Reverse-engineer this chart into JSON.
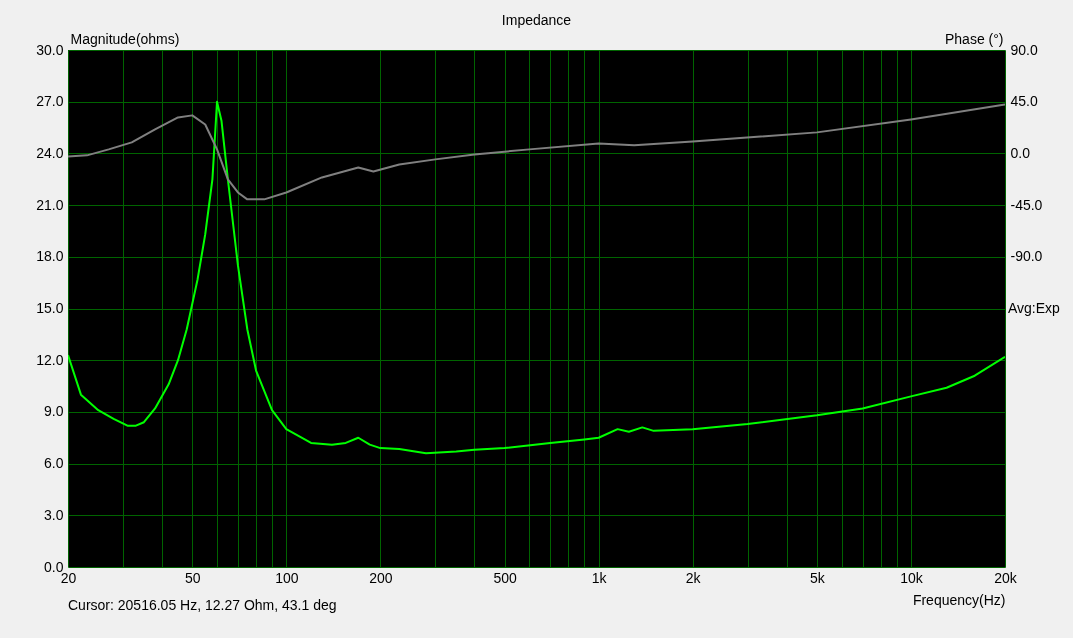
{
  "chart_data": {
    "type": "line",
    "title": "Impedance",
    "xlabel": "Frequency(Hz)",
    "ylabel": "Magnitude(ohms)",
    "y2label": "Phase (°)",
    "annotations": [
      "Cursor: 20516.05 Hz, 12.27 Ohm, 43.1 deg",
      "Avg:Exp"
    ],
    "log": "x",
    "grid": true,
    "line_style": "solid",
    "marker": "none",
    "xlim": [
      20,
      20000
    ],
    "xticks": [
      20,
      {
        "value": 30,
        "label": null
      },
      {
        "value": 40,
        "label": null
      },
      50,
      {
        "value": 60,
        "label": null
      },
      {
        "value": 70,
        "label": null
      },
      {
        "value": 80,
        "label": null
      },
      {
        "value": 90,
        "label": null
      },
      100,
      200,
      {
        "value": 300,
        "label": null
      },
      {
        "value": 400,
        "label": null
      },
      500,
      {
        "value": 600,
        "label": null
      },
      {
        "value": 700,
        "label": null
      },
      {
        "value": 800,
        "label": null
      },
      {
        "value": 900,
        "label": null
      },
      {
        "value": 1000,
        "label": "1k"
      },
      {
        "value": 2000,
        "label": "2k"
      },
      {
        "value": 3000,
        "label": null
      },
      {
        "value": 4000,
        "label": null
      },
      {
        "value": 5000,
        "label": "5k"
      },
      {
        "value": 6000,
        "label": null
      },
      {
        "value": 7000,
        "label": null
      },
      {
        "value": 8000,
        "label": null
      },
      {
        "value": 9000,
        "label": null
      },
      {
        "value": 10000,
        "label": "10k"
      },
      {
        "value": 20000,
        "label": "20k"
      }
    ],
    "ylim": [
      0,
      30
    ],
    "yticks": [
      {
        "value": 0,
        "label": "0.0"
      },
      {
        "value": 3,
        "label": "3.0"
      },
      {
        "value": 6,
        "label": "6.0"
      },
      {
        "value": 9,
        "label": "9.0"
      },
      {
        "value": 12,
        "label": "12.0"
      },
      {
        "value": 15,
        "label": "15.0"
      },
      {
        "value": 18,
        "label": "18.0"
      },
      {
        "value": 21,
        "label": "21.0"
      },
      {
        "value": 24,
        "label": "24.0"
      },
      {
        "value": 27,
        "label": "27.0"
      },
      {
        "value": 30,
        "label": "30.0"
      }
    ],
    "y2lim": [
      -360,
      90
    ],
    "y2ticks": [
      {
        "value": 90,
        "label": "90.0"
      },
      {
        "value": 45,
        "label": "45.0"
      },
      {
        "value": 0,
        "label": "0.0"
      },
      {
        "value": -45,
        "label": "-45.0"
      },
      {
        "value": -90,
        "label": "-90.0"
      }
    ],
    "series": [
      {
        "color": "#00ff00",
        "x": [
          20,
          22,
          25,
          28,
          31,
          33,
          35,
          38,
          42,
          45,
          48,
          52,
          55,
          58,
          60,
          62,
          65,
          70,
          75,
          80,
          90,
          100,
          120,
          140,
          155,
          170,
          185,
          200,
          230,
          280,
          350,
          400,
          500,
          700,
          900,
          1000,
          1150,
          1250,
          1380,
          1500,
          2000,
          3000,
          5000,
          7000,
          10000,
          13000,
          16000,
          20000
        ],
        "values": [
          12.3,
          10.0,
          9.1,
          8.6,
          8.2,
          8.2,
          8.4,
          9.2,
          10.6,
          12.0,
          13.8,
          16.7,
          19.3,
          22.5,
          27.0,
          25.9,
          22.5,
          17.5,
          13.8,
          11.4,
          9.1,
          8.0,
          7.2,
          7.1,
          7.2,
          7.5,
          7.1,
          6.9,
          6.85,
          6.6,
          6.7,
          6.8,
          6.9,
          7.2,
          7.4,
          7.5,
          8.0,
          7.85,
          8.1,
          7.9,
          8.0,
          8.3,
          8.8,
          9.2,
          9.9,
          10.4,
          11.1,
          12.2
        ]
      },
      {
        "color": "#808080",
        "axis": "y2",
        "x": [
          20,
          23,
          27,
          32,
          38,
          45,
          50,
          55,
          60,
          65,
          70,
          75,
          85,
          100,
          130,
          170,
          190,
          230,
          300,
          400,
          600,
          1000,
          1300,
          2000,
          5000,
          10000,
          20000
        ],
        "values": [
          -2.6,
          -1.7,
          3.5,
          9.6,
          20.9,
          31.3,
          33.1,
          25.2,
          3.5,
          -22.6,
          -34,
          -40,
          -40,
          -34,
          -20.9,
          -12.2,
          -15.7,
          -9.6,
          -5.2,
          -0.9,
          3.5,
          8.7,
          7.0,
          10.4,
          18.3,
          29.6,
          42.6
        ]
      }
    ]
  }
}
